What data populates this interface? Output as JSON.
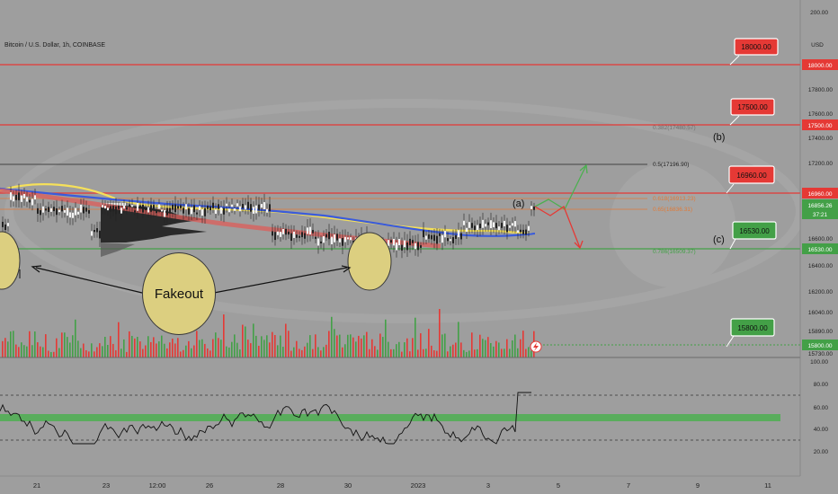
{
  "header": {
    "symbol": "Bitcoin / U.S. Dollar, 1h, COINBASE",
    "currency": "USD"
  },
  "price_axis": {
    "ticks": [
      "200.00",
      "17800.00",
      "17600.00",
      "17400.00",
      "17200.00",
      "16600.00",
      "16400.00",
      "16200.00",
      "16040.00",
      "15890.00",
      "15730.00"
    ]
  },
  "price_tags": {
    "line_18000": "18000.00",
    "line_17500": "17500.00",
    "line_16960": "16960.00",
    "line_16530": "16530.00",
    "line_15800": "15800.00",
    "current": "16856.26",
    "countdown": "37:21"
  },
  "callouts": {
    "c18000": "18000.00",
    "c17500": "17500.00",
    "c16960": "16960.00",
    "c16530": "16530.00",
    "c15800": "15800.00"
  },
  "fib_labels": {
    "f0382": "0.382(17480.57)",
    "f05": "0.5(17196.90)",
    "f0618": "0.618(16913.23)",
    "f065": "0.65(16836.31)",
    "f0786": "0.786(16509.37)"
  },
  "wave_labels": {
    "a": "(a)",
    "b": "(b)",
    "c": "(c)"
  },
  "annotation": {
    "fakeout": "Fakeout"
  },
  "rsi_axis": {
    "ticks": [
      "100.00",
      "80.00",
      "60.00",
      "40.00",
      "20.00"
    ]
  },
  "time_axis": {
    "ticks": [
      "21",
      "23",
      "12:00",
      "26",
      "28",
      "30",
      "2023",
      "3",
      "5",
      "7",
      "9",
      "11"
    ]
  },
  "colors": {
    "background": "#9e9e9e",
    "resistance": "#e53935",
    "support": "#43a047",
    "ma_yellow": "#f5e05a",
    "ma_blue": "#3b5bdb",
    "ma_red": "#d9605c",
    "rsi_band": "#4caf50"
  }
}
